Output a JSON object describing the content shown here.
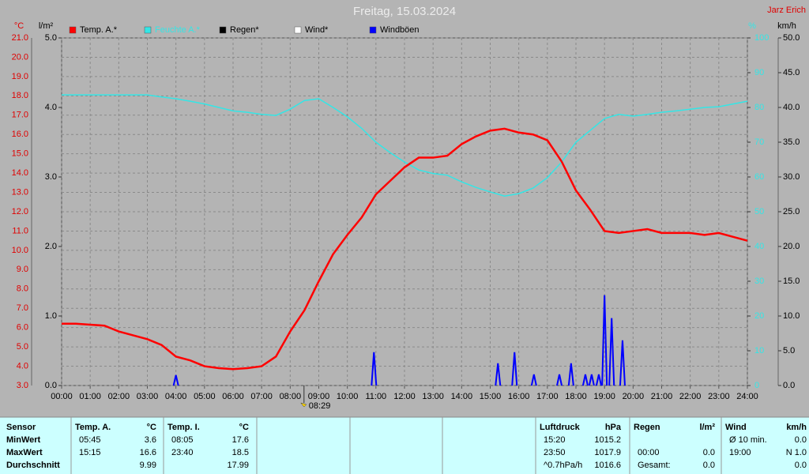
{
  "chart_data": {
    "type": "line",
    "title": "Freitag, 15.03.2024",
    "author": "Jarz Erich",
    "xlim": [
      0,
      24
    ],
    "xticks": [
      {
        "value": 0,
        "label": "00:00"
      },
      {
        "value": 1,
        "label": "01:00"
      },
      {
        "value": 2,
        "label": "02:00"
      },
      {
        "value": 3,
        "label": "03:00"
      },
      {
        "value": 4,
        "label": "04:00"
      },
      {
        "value": 5,
        "label": "05:00"
      },
      {
        "value": 6,
        "label": "06:00"
      },
      {
        "value": 7,
        "label": "07:00"
      },
      {
        "value": 8,
        "label": "08:00"
      },
      {
        "value": 9,
        "label": "09:00"
      },
      {
        "value": 10,
        "label": "10:00"
      },
      {
        "value": 11,
        "label": "11:00"
      },
      {
        "value": 12,
        "label": "12:00"
      },
      {
        "value": 13,
        "label": "13:00"
      },
      {
        "value": 14,
        "label": "14:00"
      },
      {
        "value": 15,
        "label": "15:00"
      },
      {
        "value": 16,
        "label": "16:00"
      },
      {
        "value": 17,
        "label": "17:00"
      },
      {
        "value": 18,
        "label": "18:00"
      },
      {
        "value": 19,
        "label": "19:00"
      },
      {
        "value": 20,
        "label": "20:00"
      },
      {
        "value": 21,
        "label": "21:00"
      },
      {
        "value": 22,
        "label": "22:00"
      },
      {
        "value": 23,
        "label": "23:00"
      },
      {
        "value": 24,
        "label": "24:00"
      }
    ],
    "ylabel": "°C",
    "ylim": [
      3,
      21
    ],
    "yticks": [
      {
        "value": 3,
        "label": "3.0"
      },
      {
        "value": 4,
        "label": "4.0"
      },
      {
        "value": 5,
        "label": "5.0"
      },
      {
        "value": 6,
        "label": "6.0"
      },
      {
        "value": 7,
        "label": "7.0"
      },
      {
        "value": 8,
        "label": "8.0"
      },
      {
        "value": 9,
        "label": "9.0"
      },
      {
        "value": 10,
        "label": "10.0"
      },
      {
        "value": 11,
        "label": "11.0"
      },
      {
        "value": 12,
        "label": "12.0"
      },
      {
        "value": 13,
        "label": "13.0"
      },
      {
        "value": 14,
        "label": "14.0"
      },
      {
        "value": 15,
        "label": "15.0"
      },
      {
        "value": 16,
        "label": "16.0"
      },
      {
        "value": 17,
        "label": "17.0"
      },
      {
        "value": 18,
        "label": "18.0"
      },
      {
        "value": 19,
        "label": "19.0"
      },
      {
        "value": 20,
        "label": "20.0"
      },
      {
        "value": 21,
        "label": "21.0"
      }
    ],
    "rain_label": "l/m²",
    "rain_lim": [
      0,
      5
    ],
    "rain_ticks": [
      {
        "value": 0,
        "label": "0.0"
      },
      {
        "value": 1,
        "label": "1.0"
      },
      {
        "value": 2,
        "label": "2.0"
      },
      {
        "value": 3,
        "label": "3.0"
      },
      {
        "value": 4,
        "label": "4.0"
      },
      {
        "value": 5,
        "label": "5.0"
      }
    ],
    "y2label": "%",
    "y2lim": [
      0,
      100
    ],
    "y2ticks": [
      0,
      10,
      20,
      30,
      40,
      50,
      60,
      70,
      80,
      90,
      100
    ],
    "y3label": "km/h",
    "y3lim": [
      0,
      50
    ],
    "y3ticks": [
      {
        "value": 0,
        "label": "0.0"
      },
      {
        "value": 5,
        "label": "5.0"
      },
      {
        "value": 10,
        "label": "10.0"
      },
      {
        "value": 15,
        "label": "15.0"
      },
      {
        "value": 20,
        "label": "20.0"
      },
      {
        "value": 25,
        "label": "25.0"
      },
      {
        "value": 30,
        "label": "30.0"
      },
      {
        "value": 35,
        "label": "35.0"
      },
      {
        "value": 40,
        "label": "40.0"
      },
      {
        "value": 45,
        "label": "45.0"
      },
      {
        "value": 50,
        "label": "50.0"
      }
    ],
    "grid": true,
    "marker": {
      "value": 8.483,
      "label": "08:29"
    },
    "x": [
      0,
      0.5,
      1,
      1.5,
      2,
      2.5,
      3,
      3.5,
      4,
      4.5,
      5,
      5.5,
      6,
      6.5,
      7,
      7.5,
      8,
      8.5,
      9,
      9.5,
      10,
      10.5,
      11,
      11.5,
      12,
      12.5,
      13,
      13.5,
      14,
      14.5,
      15,
      15.5,
      16,
      16.5,
      17,
      17.5,
      18,
      18.5,
      19,
      19.5,
      20,
      20.5,
      21,
      21.5,
      22,
      22.5,
      23,
      23.5,
      24
    ],
    "series": [
      {
        "name": "Temp. A.*",
        "color": "#ff0000",
        "values": [
          6.2,
          6.2,
          6.15,
          6.1,
          5.8,
          5.6,
          5.4,
          5.1,
          4.5,
          4.3,
          4.0,
          3.9,
          3.85,
          3.9,
          4.0,
          4.5,
          5.8,
          6.9,
          8.4,
          9.8,
          10.8,
          11.7,
          12.9,
          13.6,
          14.3,
          14.8,
          14.8,
          14.9,
          15.5,
          15.9,
          16.2,
          16.3,
          16.1,
          16.0,
          15.7,
          14.6,
          13.1,
          12.1,
          11.0,
          10.9,
          11.0,
          11.1,
          10.9,
          10.9,
          10.9,
          10.8,
          10.9,
          10.7,
          10.5
        ]
      },
      {
        "name": "Feuchte A.*",
        "color": "#33e6e6",
        "axis": "y2",
        "values": [
          83.6,
          83.6,
          83.6,
          83.6,
          83.6,
          83.6,
          83.6,
          83,
          82.5,
          81.8,
          81,
          80,
          79,
          78.6,
          78,
          77.7,
          79.5,
          82,
          82.5,
          80,
          77.3,
          74,
          70,
          67,
          64.3,
          62,
          61,
          60.5,
          58.6,
          57,
          55.7,
          54.5,
          55.2,
          56.8,
          59.8,
          64.3,
          70,
          73.4,
          76.8,
          78,
          77.5,
          78,
          78.6,
          79,
          79.5,
          80,
          80.2,
          81,
          81.8
        ]
      },
      {
        "name": "Regen*",
        "color": "#000000"
      },
      {
        "name": "Wind*",
        "color": "#ffffff"
      },
      {
        "name": "Windböen",
        "color": "#0000ff",
        "axis": "y3",
        "x": [
          4.0,
          10.93,
          15.27,
          15.85,
          16.53,
          17.42,
          17.83,
          18.33,
          18.55,
          18.8,
          19.0,
          19.25,
          19.63
        ],
        "values": [
          1.5,
          4.8,
          3.2,
          4.8,
          1.6,
          1.6,
          3.2,
          1.6,
          1.6,
          1.6,
          13.0,
          9.7,
          6.5
        ]
      }
    ]
  },
  "table": {
    "sensor": {
      "header": "Sensor",
      "rows": [
        "MinWert",
        "MaxWert",
        "Durchschnitt"
      ]
    },
    "groups": [
      {
        "header": "Temp. A.",
        "unit": "°C",
        "rows": [
          [
            "05:45",
            "3.6"
          ],
          [
            "15:15",
            "16.6"
          ],
          [
            null,
            "9.99"
          ]
        ]
      },
      {
        "header": "Temp. I.",
        "unit": "°C",
        "rows": [
          [
            "08:05",
            "17.6"
          ],
          [
            "23:40",
            "18.5"
          ],
          [
            null,
            "17.99"
          ]
        ]
      },
      {
        "header": "Luftdruck",
        "unit": "hPa",
        "rows": [
          [
            "15:20",
            "1015.2"
          ],
          [
            "23:50",
            "1017.9"
          ],
          [
            "^0.7hPa/h",
            "1016.6"
          ]
        ]
      },
      {
        "header": "Regen",
        "unit": "l/m²",
        "rows": [
          [
            null,
            null
          ],
          [
            "00:00",
            "0.0"
          ],
          [
            "Gesamt:",
            "0.0"
          ]
        ]
      },
      {
        "header": "Wind",
        "unit": "km/h",
        "rows": [
          [
            "Ø 10 min.",
            "0.0"
          ],
          [
            "19:00",
            "N 1.0"
          ],
          [
            null,
            "0.0"
          ]
        ]
      }
    ]
  }
}
